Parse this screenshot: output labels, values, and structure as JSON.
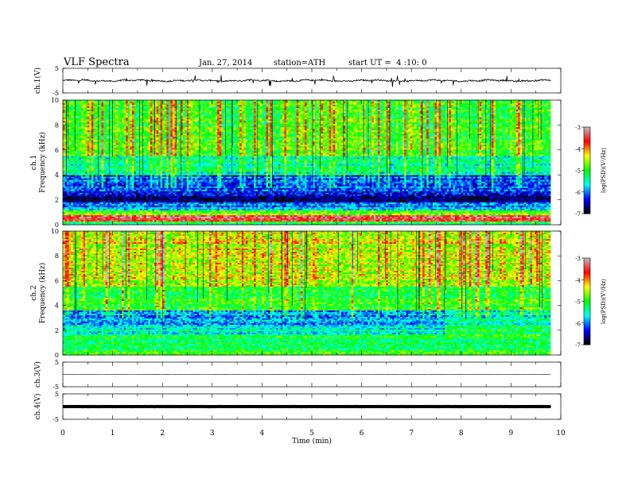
{
  "header": {
    "title": "VLF Spectra",
    "date": "Jan. 27, 2014",
    "station": "station=ATH",
    "start_ut": "start UT =  4 :10: 0"
  },
  "chart_data": [
    {
      "type": "line",
      "panel": "ch1-waveform",
      "ylabel": "ch.1(V)",
      "ylim": [
        -5,
        5
      ],
      "yticks": [
        "5",
        "-5"
      ],
      "xlim": [
        0,
        10
      ],
      "baseline": 0,
      "color": "#000000"
    },
    {
      "type": "heatmap",
      "panel": "ch1-spectrogram",
      "ylabel": "ch.1\nFrequency (kHz)",
      "ylim": [
        0,
        10
      ],
      "yticks": [
        "0",
        "2",
        "4",
        "6",
        "8",
        "10"
      ],
      "xlim": [
        0,
        9.8
      ],
      "colorbar": {
        "label": "log(PSD)(V²/Hz)",
        "range": [
          -7,
          -3
        ],
        "ticks": [
          "-3",
          "-4",
          "-5",
          "-6",
          "-7"
        ]
      },
      "bands": [
        {
          "f": [
            0,
            0.3
          ],
          "v": -5.2
        },
        {
          "f": [
            0.3,
            0.8
          ],
          "v": -3.4
        },
        {
          "f": [
            0.8,
            1.2
          ],
          "v": -4.8
        },
        {
          "f": [
            1.2,
            1.8
          ],
          "v": -6.0
        },
        {
          "f": [
            1.8,
            2.5
          ],
          "v": -6.6
        },
        {
          "f": [
            2.5,
            4.0
          ],
          "v": -6.1
        },
        {
          "f": [
            4.0,
            5.5
          ],
          "v": -5.4
        },
        {
          "f": [
            5.5,
            10.0
          ],
          "v": -4.9
        }
      ]
    },
    {
      "type": "heatmap",
      "panel": "ch2-spectrogram",
      "ylabel": "ch.2\nFrequency (kHz)",
      "ylim": [
        0,
        10
      ],
      "yticks": [
        "0",
        "2",
        "4",
        "6",
        "8",
        "10"
      ],
      "xlim": [
        0,
        9.8
      ],
      "colorbar": {
        "label": "log(PSD)(V²/Hz)",
        "range": [
          -7,
          -3
        ],
        "ticks": [
          "-3",
          "-4",
          "-5",
          "-6",
          "-7"
        ]
      },
      "bands": [
        {
          "f": [
            0,
            0.5
          ],
          "v": -5.0
        },
        {
          "f": [
            0.5,
            1.5
          ],
          "v": -5.2
        },
        {
          "f": [
            1.5,
            2.5
          ],
          "v": -5.5
        },
        {
          "f": [
            2.5,
            3.6
          ],
          "v": -5.9
        },
        {
          "f": [
            3.6,
            5.5
          ],
          "v": -5.0
        },
        {
          "f": [
            5.5,
            10.0
          ],
          "v": -4.4
        }
      ]
    },
    {
      "type": "line",
      "panel": "ch3-waveform",
      "ylabel": "ch.3(V)",
      "ylim": [
        -5,
        5
      ],
      "yticks": [
        "5",
        "-5"
      ],
      "xlim": [
        0,
        10
      ],
      "baseline": 0,
      "color": "#000000"
    },
    {
      "type": "line",
      "panel": "ch4-waveform",
      "ylabel": "ch.4(V)",
      "ylim": [
        -5,
        5
      ],
      "yticks": [
        "5",
        "-5"
      ],
      "xlim": [
        0,
        10
      ],
      "baseline": 0,
      "color": "#000000"
    }
  ],
  "xaxis": {
    "label": "Time (min)",
    "ticks": [
      "0",
      "1",
      "2",
      "3",
      "4",
      "5",
      "6",
      "7",
      "8",
      "9",
      "10"
    ]
  },
  "colors": {
    "scale": [
      "#000000",
      "#0000ff",
      "#00ffff",
      "#00ff00",
      "#ffff00",
      "#ff0000",
      "#c0c0c0"
    ]
  }
}
